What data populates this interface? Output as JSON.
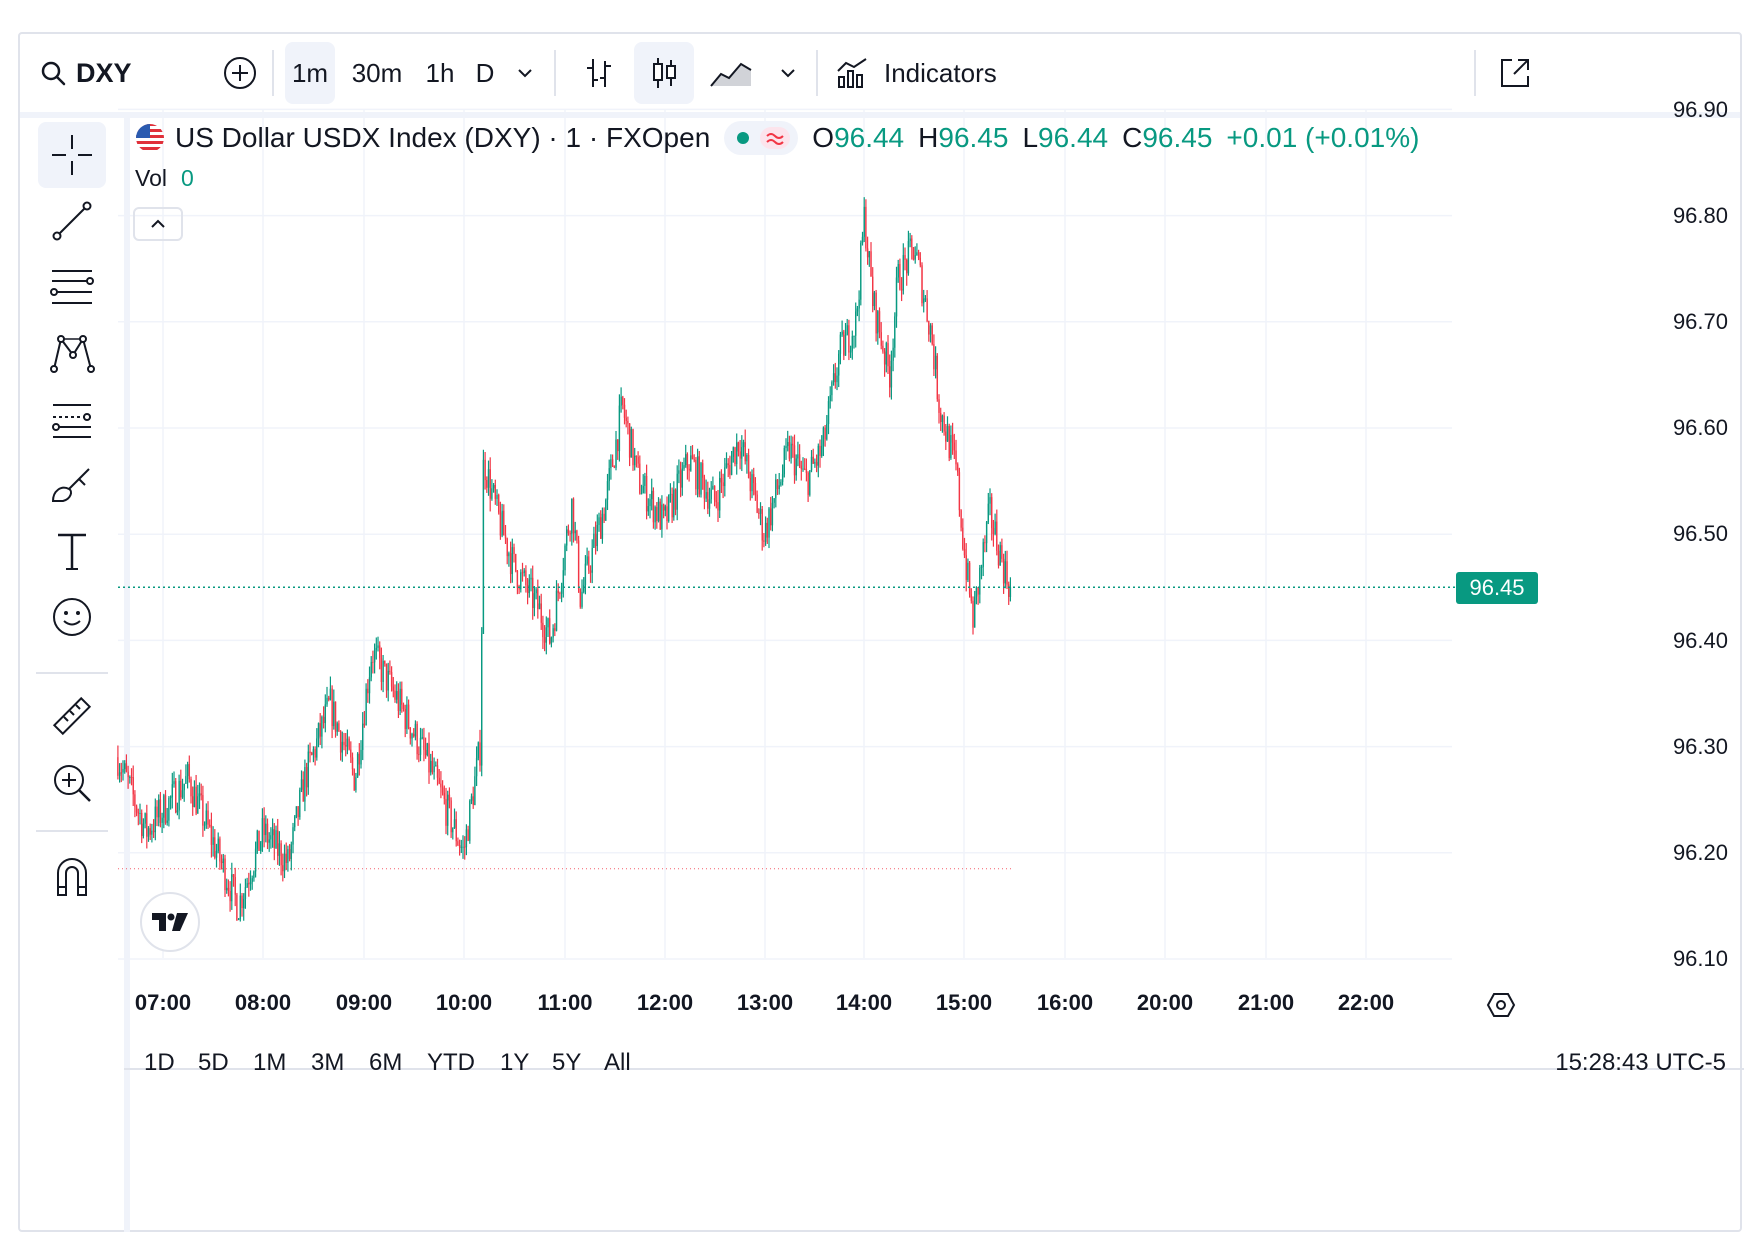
{
  "toolbar": {
    "symbol": "DXY",
    "intervals": [
      "1m",
      "30m",
      "1h",
      "D"
    ],
    "active_interval": "1m",
    "indicators_label": "Indicators"
  },
  "legend": {
    "title": "US Dollar USDX Index (DXY) · 1 · FXOpen",
    "open_label": "O",
    "open": "96.44",
    "high_label": "H",
    "high": "96.45",
    "low_label": "L",
    "low": "96.44",
    "close_label": "C",
    "close": "96.45",
    "change": "+0.01 (+0.01%)",
    "vol_label": "Vol",
    "vol_value": "0"
  },
  "price_axis": [
    "96.90",
    "96.80",
    "96.70",
    "96.60",
    "96.50",
    "96.40",
    "96.30",
    "96.20",
    "96.10"
  ],
  "current_price_label": "96.45",
  "time_axis": [
    "07:00",
    "08:00",
    "09:00",
    "10:00",
    "11:00",
    "12:00",
    "13:00",
    "14:00",
    "15:00",
    "16:00",
    "20:00",
    "21:00",
    "22:00"
  ],
  "bottom": {
    "ranges": [
      "1D",
      "5D",
      "1M",
      "3M",
      "6M",
      "YTD",
      "1Y",
      "5Y",
      "All"
    ],
    "clock": "15:28:43 UTC-5"
  },
  "colors": {
    "up": "#089981",
    "down": "#f23645",
    "grid": "#f0f3fa",
    "text": "#131722"
  },
  "chart_data": {
    "type": "candlestick",
    "title": "US Dollar USDX Index (DXY) · 1 · FXOpen",
    "ylim": [
      96.1,
      96.9
    ],
    "y_ticks": [
      96.9,
      96.8,
      96.7,
      96.6,
      96.5,
      96.4,
      96.3,
      96.2,
      96.1
    ],
    "x_ticks": [
      "07:00",
      "08:00",
      "09:00",
      "10:00",
      "11:00",
      "12:00",
      "13:00",
      "14:00",
      "15:00",
      "16:00",
      "20:00",
      "21:00",
      "22:00"
    ],
    "last_price": 96.45,
    "prev_close_line": 96.185,
    "path_time": [
      "06:33",
      "06:50",
      "07:15",
      "07:35",
      "07:45",
      "08:00",
      "08:15",
      "08:25",
      "08:40",
      "08:55",
      "09:05",
      "09:15",
      "09:25",
      "09:40",
      "09:55",
      "10:00",
      "10:05",
      "10:10",
      "10:12",
      "10:20",
      "10:30",
      "10:45",
      "10:52",
      "11:00",
      "11:05",
      "11:10",
      "11:25",
      "11:35",
      "11:45",
      "12:00",
      "12:15",
      "12:30",
      "12:45",
      "13:00",
      "13:15",
      "13:25",
      "13:35",
      "13:45",
      "13:55",
      "14:00",
      "14:05",
      "14:15",
      "14:20",
      "14:30",
      "14:40",
      "14:45",
      "14:55",
      "15:00",
      "15:05",
      "15:15",
      "15:20",
      "15:25",
      "15:28"
    ],
    "path_price": [
      96.29,
      96.22,
      96.27,
      96.19,
      96.15,
      96.22,
      96.19,
      96.27,
      96.34,
      96.27,
      96.39,
      96.36,
      96.33,
      96.28,
      96.22,
      96.2,
      96.25,
      96.3,
      96.57,
      96.52,
      96.47,
      96.43,
      96.4,
      96.48,
      96.53,
      96.44,
      96.53,
      96.62,
      96.55,
      96.51,
      96.57,
      96.53,
      96.59,
      96.5,
      96.58,
      96.55,
      96.58,
      96.67,
      96.7,
      96.8,
      96.72,
      96.65,
      96.74,
      96.77,
      96.69,
      96.62,
      96.56,
      96.48,
      96.42,
      96.52,
      96.49,
      96.46,
      96.45
    ]
  }
}
